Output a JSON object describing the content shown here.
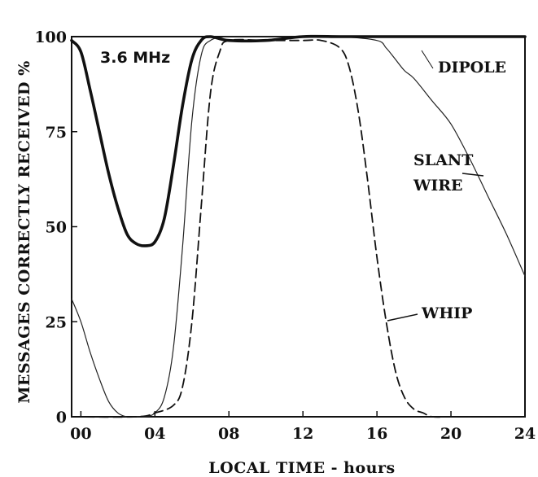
{
  "chart_data": {
    "type": "line",
    "title": "",
    "annotation": "3.6 MHz",
    "xlabel": "LOCAL TIME - hours",
    "ylabel": "MESSAGES CORRECTLY RECEIVED %",
    "xlim": [
      -0.5,
      24
    ],
    "ylim": [
      0,
      100
    ],
    "x_ticks": [
      0,
      4,
      8,
      12,
      16,
      20,
      24
    ],
    "x_tick_labels": [
      "00",
      "04",
      "08",
      "12",
      "16",
      "20",
      "24"
    ],
    "y_ticks": [
      0,
      25,
      50,
      75,
      100
    ],
    "y_tick_labels": [
      "0",
      "25",
      "50",
      "75",
      "100"
    ],
    "grid": false,
    "series": [
      {
        "name": "DIPOLE",
        "style": "thin-solid",
        "x": [
          -0.5,
          0,
          0.5,
          1,
          1.5,
          2,
          2.5,
          3,
          3.5,
          4,
          4.5,
          5,
          5.5,
          6,
          6.5,
          7,
          8,
          10,
          12,
          14,
          16,
          16.5,
          17,
          17.5,
          18,
          19,
          20,
          21,
          22,
          23,
          24
        ],
        "y": [
          31,
          25,
          17,
          10,
          4,
          1,
          0,
          0,
          0,
          1,
          5,
          18,
          45,
          78,
          95,
          99,
          100,
          100,
          100,
          100,
          99,
          97,
          94,
          91,
          89,
          83,
          77,
          68,
          58,
          48,
          37
        ]
      },
      {
        "name": "SLANT WIRE",
        "style": "thick-solid",
        "x": [
          -0.5,
          0,
          0.5,
          1,
          1.5,
          2,
          2.5,
          3,
          3.5,
          4,
          4.5,
          5,
          5.5,
          6,
          6.5,
          7,
          8,
          10,
          12,
          14,
          16,
          18,
          20,
          21,
          22,
          23,
          24
        ],
        "y": [
          99,
          96,
          86,
          75,
          64,
          55,
          48,
          45.5,
          45,
          46,
          52,
          66,
          82,
          94,
          99,
          100,
          99,
          99,
          100,
          100,
          100,
          100,
          100,
          100,
          100,
          100,
          100
        ]
      },
      {
        "name": "WHIP",
        "style": "dashed",
        "x": [
          -0.5,
          3,
          4,
          5,
          5.5,
          6,
          6.5,
          7,
          7.5,
          8,
          10,
          12,
          13,
          14,
          14.5,
          15,
          15.5,
          16,
          16.5,
          17,
          17.5,
          18,
          18.5,
          19,
          20,
          22,
          24
        ],
        "y": [
          0,
          0,
          1,
          3,
          8,
          25,
          55,
          85,
          96,
          99,
          99,
          99,
          99,
          97,
          92,
          80,
          62,
          42,
          25,
          12,
          5,
          2,
          1,
          0,
          0,
          0,
          0
        ]
      }
    ],
    "labels": [
      "DIPOLE",
      "SLANT",
      "WIRE",
      "WHIP"
    ]
  }
}
